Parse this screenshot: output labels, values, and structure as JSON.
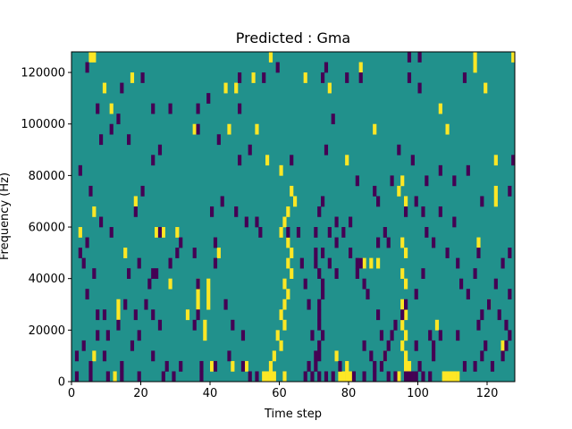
{
  "chart_data": {
    "type": "heatmap",
    "title": "Predicted : Gma",
    "xlabel": "Time step",
    "ylabel": "Frequency (Hz)",
    "xlim": [
      0,
      128
    ],
    "ylim": [
      0,
      128000
    ],
    "x_ticks": [
      0,
      20,
      40,
      60,
      80,
      100,
      120
    ],
    "y_ticks": [
      0,
      20000,
      40000,
      60000,
      80000,
      100000,
      120000
    ],
    "grid": false,
    "colors": {
      "background": "#21918c",
      "low": "#440154",
      "high": "#fde725"
    },
    "cell": {
      "time_steps": 128,
      "freq_bin_hz": 4000
    },
    "high_cells": [
      [
        5,
        124000
      ],
      [
        17,
        116000
      ],
      [
        44,
        112000
      ],
      [
        60,
        80000
      ],
      [
        63,
        72000
      ],
      [
        64,
        68000
      ],
      [
        62,
        64000
      ],
      [
        61,
        60000
      ],
      [
        60,
        56000
      ],
      [
        62,
        52000
      ],
      [
        63,
        48000
      ],
      [
        62,
        44000
      ],
      [
        63,
        40000
      ],
      [
        61,
        36000
      ],
      [
        62,
        32000
      ],
      [
        61,
        28000
      ],
      [
        60,
        24000
      ],
      [
        61,
        20000
      ],
      [
        59,
        16000
      ],
      [
        60,
        12000
      ],
      [
        58,
        8000
      ],
      [
        57,
        4000
      ],
      [
        55,
        0
      ],
      [
        56,
        0
      ],
      [
        57,
        0
      ],
      [
        58,
        0
      ],
      [
        61,
        0
      ],
      [
        36,
        36000
      ],
      [
        36,
        32000
      ],
      [
        36,
        28000
      ],
      [
        39,
        36000
      ],
      [
        39,
        32000
      ],
      [
        39,
        28000
      ],
      [
        33,
        24000
      ],
      [
        38,
        20000
      ],
      [
        38,
        16000
      ],
      [
        77,
        0
      ],
      [
        78,
        0
      ],
      [
        79,
        0
      ],
      [
        80,
        0
      ],
      [
        79,
        4000
      ],
      [
        76,
        8000
      ],
      [
        84,
        44000
      ],
      [
        86,
        44000
      ],
      [
        88,
        44000
      ],
      [
        94,
        72000
      ],
      [
        95,
        76000
      ],
      [
        96,
        68000
      ],
      [
        95,
        52000
      ],
      [
        96,
        48000
      ],
      [
        95,
        40000
      ],
      [
        96,
        36000
      ],
      [
        95,
        28000
      ],
      [
        96,
        24000
      ],
      [
        95,
        20000
      ],
      [
        96,
        16000
      ],
      [
        95,
        12000
      ],
      [
        96,
        8000
      ],
      [
        96,
        4000
      ],
      [
        97,
        4000
      ],
      [
        94,
        0
      ],
      [
        107,
        0
      ],
      [
        108,
        0
      ],
      [
        109,
        0
      ],
      [
        110,
        0
      ],
      [
        111,
        0
      ],
      [
        117,
        52000
      ],
      [
        122,
        68000
      ],
      [
        122,
        84000
      ],
      [
        122,
        72000
      ],
      [
        127,
        124000
      ],
      [
        119,
        112000
      ],
      [
        108,
        96000
      ],
      [
        106,
        104000
      ],
      [
        83,
        120000
      ],
      [
        74,
        112000
      ],
      [
        45,
        96000
      ],
      [
        53,
        96000
      ],
      [
        56,
        84000
      ],
      [
        24,
        56000
      ],
      [
        26,
        56000
      ],
      [
        30,
        56000
      ],
      [
        42,
        48000
      ],
      [
        28,
        36000
      ],
      [
        13,
        24000
      ],
      [
        6,
        8000
      ],
      [
        12,
        0
      ],
      [
        40,
        4000
      ],
      [
        46,
        4000
      ],
      [
        13,
        28000
      ],
      [
        15,
        48000
      ],
      [
        9,
        112000
      ],
      [
        11,
        104000
      ],
      [
        6,
        124000
      ],
      [
        2,
        56000
      ],
      [
        35,
        96000
      ],
      [
        6,
        64000
      ],
      [
        18,
        68000
      ],
      [
        47,
        112000
      ],
      [
        52,
        116000
      ],
      [
        57,
        124000
      ],
      [
        67,
        116000
      ],
      [
        79,
        84000
      ],
      [
        87,
        96000
      ],
      [
        83,
        44000
      ],
      [
        50,
        4000
      ],
      [
        90,
        8000
      ],
      [
        105,
        20000
      ],
      [
        120,
        28000
      ],
      [
        124,
        12000
      ],
      [
        116,
        120000
      ],
      [
        116,
        124000
      ]
    ],
    "low_cells": [
      [
        4,
        120000
      ],
      [
        14,
        112000
      ],
      [
        20,
        116000
      ],
      [
        36,
        104000
      ],
      [
        48,
        104000
      ],
      [
        48,
        116000
      ],
      [
        72,
        116000
      ],
      [
        79,
        116000
      ],
      [
        83,
        116000
      ],
      [
        97,
        116000
      ],
      [
        100,
        112000
      ],
      [
        97,
        124000
      ],
      [
        100,
        124000
      ],
      [
        113,
        116000
      ],
      [
        73,
        88000
      ],
      [
        63,
        84000
      ],
      [
        7,
        104000
      ],
      [
        8,
        92000
      ],
      [
        13,
        100000
      ],
      [
        23,
        104000
      ],
      [
        28,
        104000
      ],
      [
        39,
        108000
      ],
      [
        36,
        96000
      ],
      [
        42,
        92000
      ],
      [
        48,
        84000
      ],
      [
        51,
        88000
      ],
      [
        55,
        116000
      ],
      [
        59,
        120000
      ],
      [
        73,
        120000
      ],
      [
        75,
        100000
      ],
      [
        82,
        76000
      ],
      [
        87,
        72000
      ],
      [
        88,
        68000
      ],
      [
        94,
        88000
      ],
      [
        98,
        84000
      ],
      [
        102,
        76000
      ],
      [
        106,
        80000
      ],
      [
        110,
        76000
      ],
      [
        114,
        80000
      ],
      [
        128,
        84000
      ],
      [
        126,
        72000
      ],
      [
        118,
        68000
      ],
      [
        110,
        60000
      ],
      [
        106,
        64000
      ],
      [
        101,
        64000
      ],
      [
        99,
        68000
      ],
      [
        96,
        64000
      ],
      [
        92,
        76000
      ],
      [
        90,
        56000
      ],
      [
        91,
        52000
      ],
      [
        88,
        52000
      ],
      [
        83,
        44000
      ],
      [
        82,
        40000
      ],
      [
        76,
        40000
      ],
      [
        78,
        56000
      ],
      [
        76,
        60000
      ],
      [
        72,
        68000
      ],
      [
        71,
        64000
      ],
      [
        70,
        56000
      ],
      [
        70,
        48000
      ],
      [
        70,
        44000
      ],
      [
        71,
        40000
      ],
      [
        72,
        36000
      ],
      [
        72,
        32000
      ],
      [
        71,
        28000
      ],
      [
        71,
        24000
      ],
      [
        71,
        20000
      ],
      [
        72,
        16000
      ],
      [
        71,
        12000
      ],
      [
        71,
        8000
      ],
      [
        70,
        4000
      ],
      [
        68,
        4000
      ],
      [
        67,
        0
      ],
      [
        69,
        0
      ],
      [
        71,
        0
      ],
      [
        73,
        0
      ],
      [
        75,
        0
      ],
      [
        77,
        4000
      ],
      [
        81,
        0
      ],
      [
        84,
        0
      ],
      [
        87,
        0
      ],
      [
        87,
        4000
      ],
      [
        86,
        8000
      ],
      [
        84,
        12000
      ],
      [
        89,
        16000
      ],
      [
        88,
        24000
      ],
      [
        85,
        32000
      ],
      [
        84,
        36000
      ],
      [
        82,
        44000
      ],
      [
        80,
        48000
      ],
      [
        80,
        60000
      ],
      [
        76,
        52000
      ],
      [
        74,
        56000
      ],
      [
        74,
        44000
      ],
      [
        72,
        48000
      ],
      [
        66,
        44000
      ],
      [
        67,
        36000
      ],
      [
        68,
        28000
      ],
      [
        69,
        16000
      ],
      [
        70,
        8000
      ],
      [
        65,
        56000
      ],
      [
        62,
        56000
      ],
      [
        54,
        56000
      ],
      [
        53,
        60000
      ],
      [
        50,
        60000
      ],
      [
        47,
        64000
      ],
      [
        43,
        68000
      ],
      [
        40,
        64000
      ],
      [
        41,
        52000
      ],
      [
        35,
        48000
      ],
      [
        41,
        44000
      ],
      [
        30,
        48000
      ],
      [
        24,
        40000
      ],
      [
        22,
        36000
      ],
      [
        16,
        40000
      ],
      [
        19,
        44000
      ],
      [
        28,
        44000
      ],
      [
        31,
        52000
      ],
      [
        36,
        36000
      ],
      [
        25,
        56000
      ],
      [
        23,
        40000
      ],
      [
        18,
        24000
      ],
      [
        15,
        28000
      ],
      [
        13,
        20000
      ],
      [
        10,
        16000
      ],
      [
        7,
        16000
      ],
      [
        9,
        8000
      ],
      [
        5,
        4000
      ],
      [
        5,
        0
      ],
      [
        10,
        0
      ],
      [
        14,
        0
      ],
      [
        19,
        0
      ],
      [
        26,
        0
      ],
      [
        27,
        4000
      ],
      [
        23,
        8000
      ],
      [
        17,
        12000
      ],
      [
        19,
        16000
      ],
      [
        23,
        24000
      ],
      [
        21,
        28000
      ],
      [
        25,
        20000
      ],
      [
        35,
        20000
      ],
      [
        36,
        24000
      ],
      [
        44,
        28000
      ],
      [
        46,
        20000
      ],
      [
        49,
        16000
      ],
      [
        51,
        0
      ],
      [
        53,
        0
      ],
      [
        49,
        4000
      ],
      [
        45,
        8000
      ],
      [
        41,
        4000
      ],
      [
        37,
        0
      ],
      [
        37,
        4000
      ],
      [
        29,
        0
      ],
      [
        31,
        4000
      ],
      [
        14,
        4000
      ],
      [
        7,
        24000
      ],
      [
        4,
        32000
      ],
      [
        6,
        40000
      ],
      [
        3,
        44000
      ],
      [
        2,
        48000
      ],
      [
        4,
        52000
      ],
      [
        11,
        56000
      ],
      [
        18,
        64000
      ],
      [
        20,
        72000
      ],
      [
        23,
        84000
      ],
      [
        25,
        88000
      ],
      [
        16,
        92000
      ],
      [
        11,
        96000
      ],
      [
        2,
        80000
      ],
      [
        5,
        72000
      ],
      [
        8,
        60000
      ],
      [
        9,
        24000
      ],
      [
        3,
        12000
      ],
      [
        1,
        8000
      ],
      [
        1,
        0
      ],
      [
        97,
        0
      ],
      [
        98,
        0
      ],
      [
        99,
        0
      ],
      [
        100,
        4000
      ],
      [
        104,
        8000
      ],
      [
        104,
        12000
      ],
      [
        106,
        16000
      ],
      [
        101,
        0
      ],
      [
        103,
        0
      ],
      [
        116,
        4000
      ],
      [
        118,
        8000
      ],
      [
        119,
        12000
      ],
      [
        121,
        4000
      ],
      [
        124,
        8000
      ],
      [
        125,
        12000
      ],
      [
        126,
        16000
      ],
      [
        125,
        20000
      ],
      [
        123,
        24000
      ],
      [
        126,
        32000
      ],
      [
        124,
        44000
      ],
      [
        126,
        48000
      ],
      [
        117,
        48000
      ],
      [
        116,
        40000
      ],
      [
        114,
        32000
      ],
      [
        112,
        36000
      ],
      [
        111,
        44000
      ],
      [
        108,
        48000
      ],
      [
        104,
        52000
      ],
      [
        102,
        56000
      ],
      [
        101,
        40000
      ],
      [
        99,
        32000
      ],
      [
        96,
        28000
      ],
      [
        95,
        24000
      ],
      [
        93,
        20000
      ],
      [
        92,
        16000
      ],
      [
        91,
        12000
      ],
      [
        90,
        8000
      ],
      [
        89,
        4000
      ],
      [
        91,
        0
      ],
      [
        93,
        0
      ],
      [
        96,
        0
      ],
      [
        99,
        12000
      ],
      [
        103,
        16000
      ],
      [
        111,
        16000
      ],
      [
        113,
        4000
      ],
      [
        117,
        20000
      ],
      [
        118,
        24000
      ],
      [
        120,
        28000
      ],
      [
        122,
        36000
      ]
    ]
  }
}
